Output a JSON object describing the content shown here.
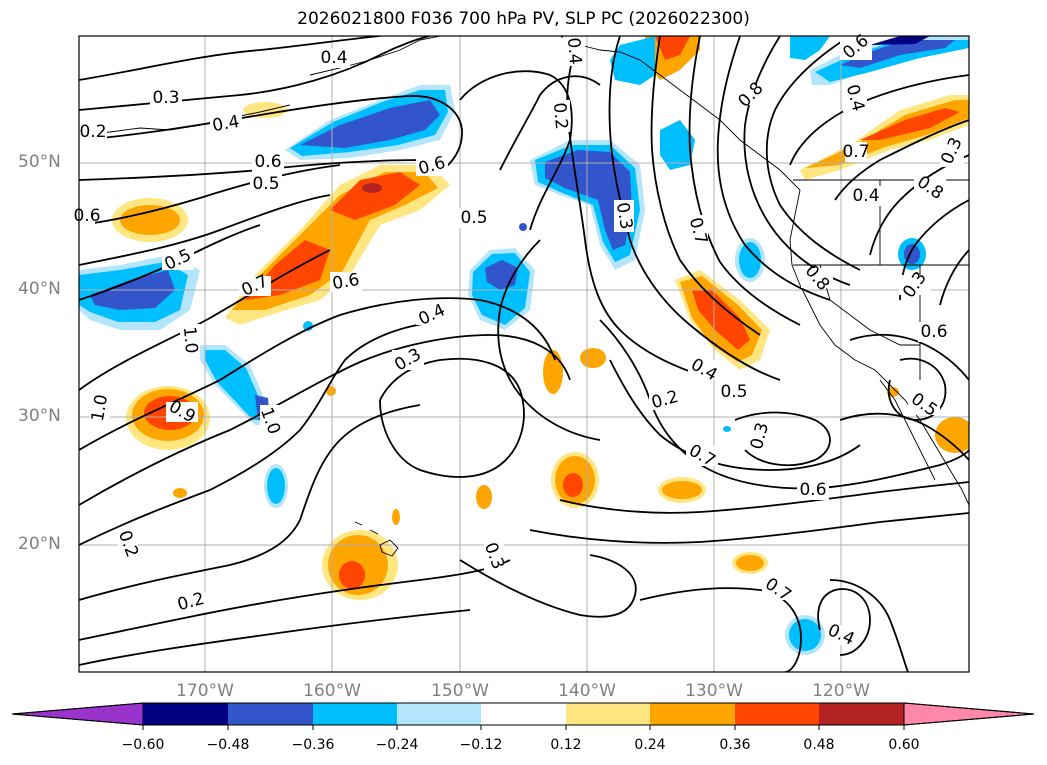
{
  "title": "2026021800 F036 700 hPa PV, SLP PC (2026022300)",
  "latitude_labels": [
    "50°N",
    "40°N",
    "30°N",
    "20°N"
  ],
  "longitude_labels": [
    "170°W",
    "160°W",
    "150°W",
    "140°W",
    "130°W",
    "120°W"
  ],
  "colorbar": {
    "tick_labels": [
      "−0.60",
      "−0.48",
      "−0.36",
      "−0.24",
      "−0.12",
      "0.12",
      "0.24",
      "0.36",
      "0.48",
      "0.60"
    ],
    "colors": [
      "#9933cc",
      "#000080",
      "#3355cc",
      "#00bfff",
      "#b3e5fc",
      "#ffffff",
      "#ffe680",
      "#ffa500",
      "#ff4500",
      "#b22222",
      "#ff88aa"
    ]
  },
  "contour_labels": [
    "0.3",
    "0.4",
    "0.5",
    "0.6",
    "0.6",
    "0.5",
    "0.4",
    "0.3",
    "0.7",
    "0.6",
    "0.5",
    "0.4",
    "0.2",
    "0.3",
    "0.7",
    "0.8",
    "0.4",
    "0.8",
    "0.8",
    "0.3",
    "0.6",
    "0.5",
    "0.4",
    "0.5",
    "0.2",
    "0.7",
    "0.6",
    "0.3",
    "0.7",
    "0.4",
    "0.2",
    "0.2",
    "0.3",
    "1.0",
    "0.9",
    "1.0",
    "1.0",
    "0.6",
    "0.4",
    "0.3",
    "0.7",
    "0.4",
    "0.6",
    "0.2",
    "0.4"
  ],
  "fill_colors": {
    "neg_light": "#b3e5fc",
    "neg_cyan": "#00bfff",
    "neg_blue": "#3355cc",
    "neg_navy": "#000080",
    "pos_yellow": "#ffe680",
    "pos_orange": "#ffa500",
    "pos_red": "#ff4500",
    "pos_dark": "#b22222",
    "pos_pink": "#ff88aa"
  }
}
